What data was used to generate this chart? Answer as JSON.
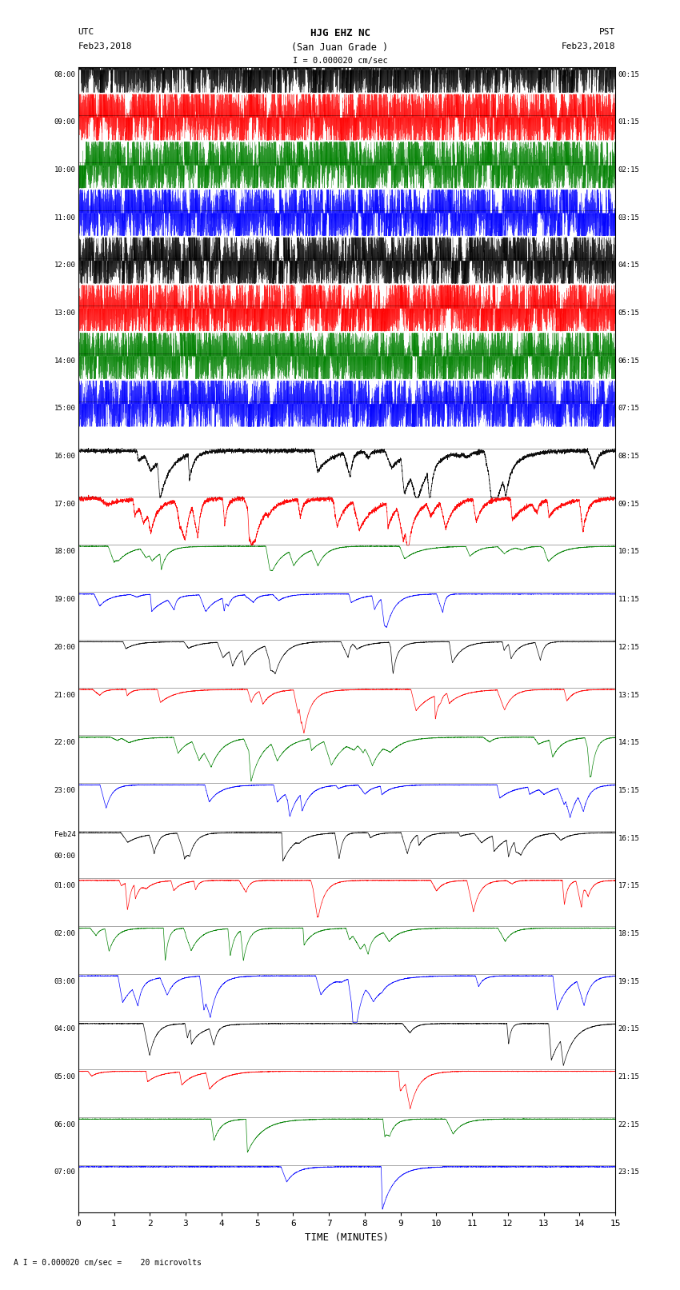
{
  "title_line1": "HJG EHZ NC",
  "title_line2": "(San Juan Grade )",
  "scale_text": "I = 0.000020 cm/sec",
  "footer_text": "A I = 0.000020 cm/sec =    20 microvolts",
  "utc_label": "UTC",
  "utc_date": "Feb23,2018",
  "pst_label": "PST",
  "pst_date": "Feb23,2018",
  "xlabel": "TIME (MINUTES)",
  "left_times": [
    "08:00",
    "09:00",
    "10:00",
    "11:00",
    "12:00",
    "13:00",
    "14:00",
    "15:00",
    "16:00",
    "17:00",
    "18:00",
    "19:00",
    "20:00",
    "21:00",
    "22:00",
    "23:00",
    "Feb24\n00:00",
    "01:00",
    "02:00",
    "03:00",
    "04:00",
    "05:00",
    "06:00",
    "07:00"
  ],
  "right_times": [
    "00:15",
    "01:15",
    "02:15",
    "03:15",
    "04:15",
    "05:15",
    "06:15",
    "07:15",
    "08:15",
    "09:15",
    "10:15",
    "11:15",
    "12:15",
    "13:15",
    "14:15",
    "15:15",
    "16:15",
    "17:15",
    "18:15",
    "19:15",
    "20:15",
    "21:15",
    "22:15",
    "23:15"
  ],
  "n_traces": 24,
  "x_min": 0,
  "x_max": 15,
  "x_ticks": [
    0,
    1,
    2,
    3,
    4,
    5,
    6,
    7,
    8,
    9,
    10,
    11,
    12,
    13,
    14,
    15
  ],
  "trace_colors": [
    "black",
    "red",
    "green",
    "blue"
  ],
  "seed": 42,
  "dense_rows": 8,
  "transition_rows": 2,
  "n_pts_dense": 15000,
  "n_pts_sparse": 5000
}
